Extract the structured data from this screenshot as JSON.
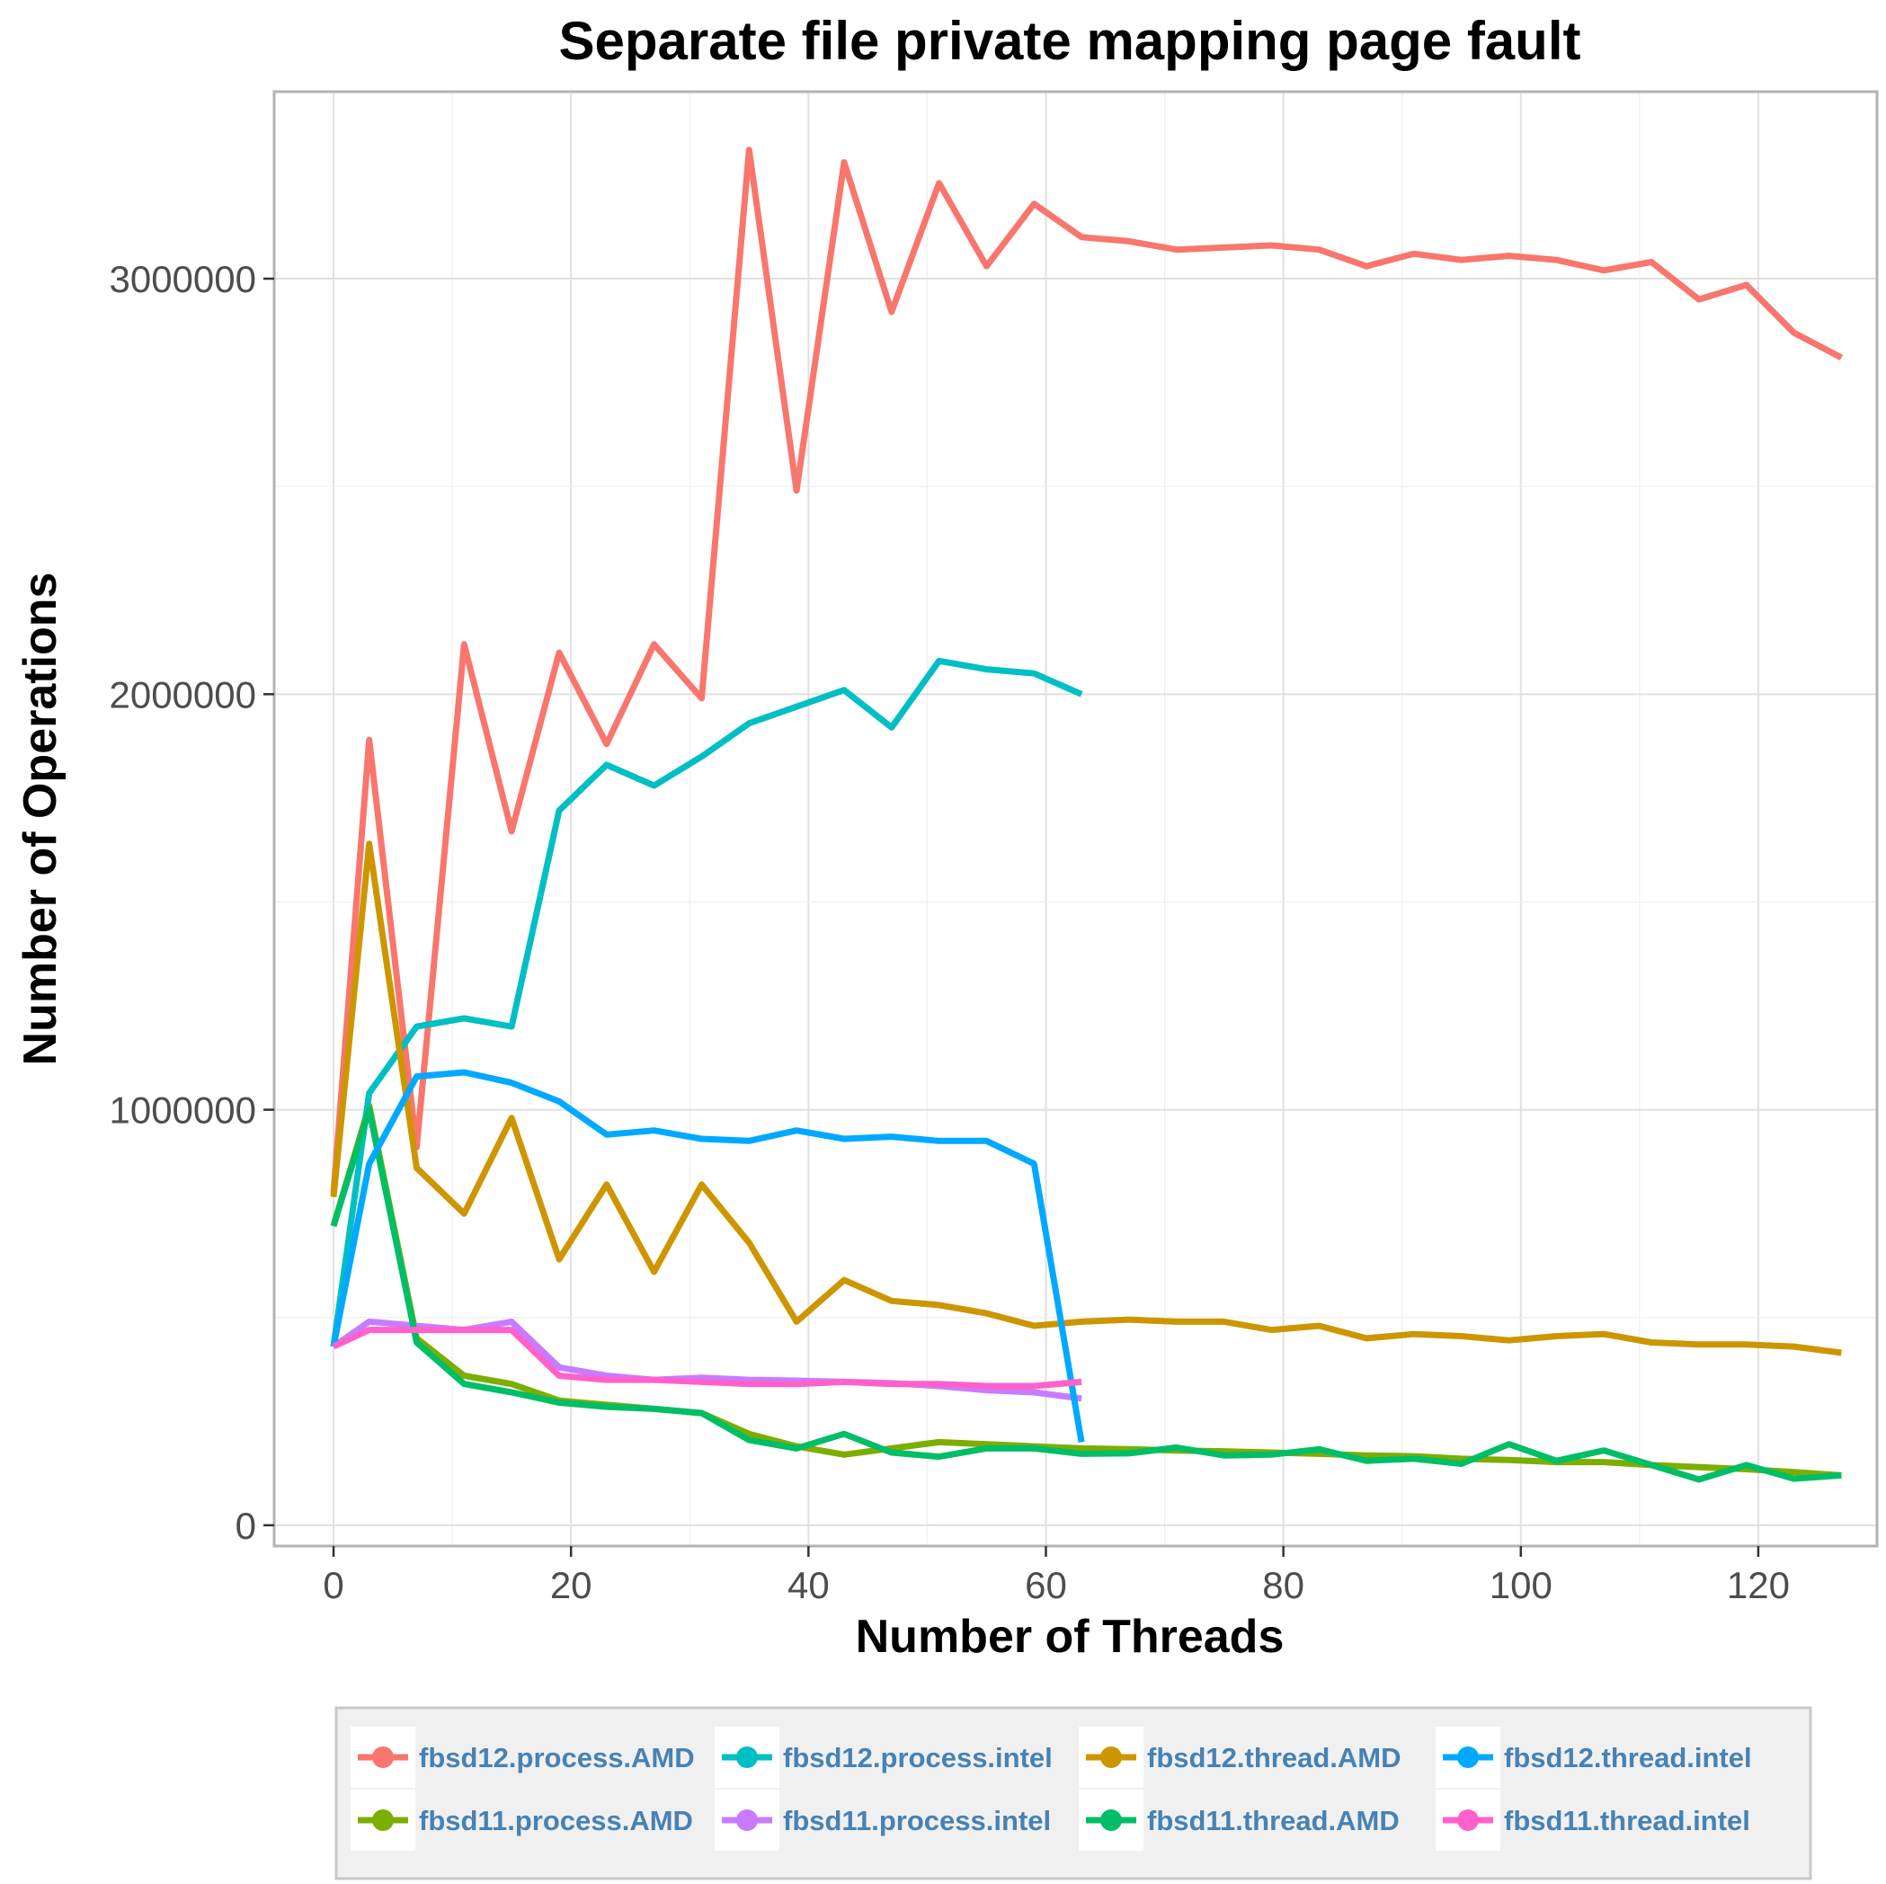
{
  "chart_data": {
    "type": "line",
    "title": "Separate file private mapping page fault",
    "xlabel": "Number of Threads",
    "ylabel": "Number of Operations",
    "xlim": [
      -5,
      130
    ],
    "ylim": [
      -50000,
      3450000
    ],
    "x_ticks": [
      0,
      20,
      40,
      60,
      80,
      100,
      120
    ],
    "x_tick_labels": [
      "0",
      "20",
      "40",
      "60",
      "80",
      "100",
      "120"
    ],
    "y_ticks": [
      0,
      1000000,
      2000000,
      3000000
    ],
    "y_tick_labels": [
      "0",
      "1000000",
      "2000000",
      "3000000"
    ],
    "grid": true,
    "legend_position": "bottom",
    "series": [
      {
        "name": "fbsd12.process.AMD",
        "color": "#F8766D",
        "x": [
          0,
          3,
          7,
          11,
          15,
          19,
          23,
          27,
          31,
          35,
          39,
          43,
          47,
          51,
          55,
          59,
          63,
          67,
          71,
          75,
          79,
          83,
          87,
          91,
          95,
          99,
          103,
          107,
          111,
          115,
          119,
          123,
          127
        ],
        "y": [
          800000,
          1890000,
          910000,
          2120000,
          1670000,
          2100000,
          1880000,
          2120000,
          1990000,
          3310000,
          2490000,
          3280000,
          2920000,
          3230000,
          3030000,
          3180000,
          3100000,
          3090000,
          3070000,
          3075000,
          3080000,
          3070000,
          3030000,
          3060000,
          3045000,
          3055000,
          3045000,
          3020000,
          3040000,
          2950000,
          2985000,
          2870000,
          2810000
        ]
      },
      {
        "name": "fbsd11.process.AMD",
        "color": "#7CAE00",
        "x": [
          0,
          3,
          7,
          11,
          15,
          19,
          23,
          27,
          31,
          35,
          39,
          43,
          47,
          51,
          55,
          59,
          63,
          67,
          71,
          75,
          79,
          83,
          87,
          91,
          95,
          99,
          103,
          107,
          111,
          115,
          119,
          123,
          127
        ],
        "y": [
          720000,
          1010000,
          450000,
          360000,
          340000,
          300000,
          290000,
          280000,
          270000,
          220000,
          190000,
          170000,
          185000,
          200000,
          195000,
          190000,
          185000,
          183000,
          180000,
          178000,
          175000,
          172000,
          168000,
          166000,
          160000,
          157000,
          152000,
          152000,
          145000,
          140000,
          135000,
          128000,
          120000
        ]
      },
      {
        "name": "fbsd12.process.intel",
        "color": "#00BFC4",
        "x": [
          0,
          3,
          7,
          11,
          15,
          19,
          23,
          27,
          31,
          35,
          39,
          43,
          47,
          51,
          55,
          59,
          63
        ],
        "y": [
          430000,
          1040000,
          1200000,
          1220000,
          1200000,
          1720000,
          1830000,
          1780000,
          1850000,
          1930000,
          1970000,
          2010000,
          1920000,
          2080000,
          2060000,
          2050000,
          2000000
        ]
      },
      {
        "name": "fbsd11.process.intel",
        "color": "#C77CFF",
        "x": [
          0,
          3,
          7,
          11,
          15,
          19,
          23,
          27,
          31,
          35,
          39,
          43,
          47,
          51,
          55,
          59,
          63
        ],
        "y": [
          430000,
          490000,
          480000,
          470000,
          490000,
          380000,
          360000,
          350000,
          355000,
          350000,
          348000,
          345000,
          342000,
          335000,
          325000,
          320000,
          305000
        ]
      },
      {
        "name": "fbsd12.thread.AMD",
        "color": "#CD9600",
        "x": [
          0,
          3,
          7,
          11,
          15,
          19,
          23,
          27,
          31,
          35,
          39,
          43,
          47,
          51,
          55,
          59,
          63,
          67,
          71,
          75,
          79,
          83,
          87,
          91,
          95,
          99,
          103,
          107,
          111,
          115,
          119,
          123,
          127
        ],
        "y": [
          790000,
          1640000,
          860000,
          750000,
          980000,
          640000,
          820000,
          610000,
          820000,
          680000,
          490000,
          590000,
          540000,
          530000,
          510000,
          480000,
          490000,
          495000,
          490000,
          490000,
          470000,
          480000,
          450000,
          460000,
          455000,
          445000,
          455000,
          460000,
          440000,
          435000,
          435000,
          430000,
          415000
        ]
      },
      {
        "name": "fbsd11.thread.AMD",
        "color": "#00BE67",
        "x": [
          0,
          3,
          7,
          11,
          15,
          19,
          23,
          27,
          31,
          35,
          39,
          43,
          47,
          51,
          55,
          59,
          63,
          67,
          71,
          75,
          79,
          83,
          87,
          91,
          95,
          99,
          103,
          107,
          111,
          115,
          119,
          123,
          127
        ],
        "y": [
          720000,
          1000000,
          440000,
          340000,
          320000,
          295000,
          285000,
          280000,
          270000,
          205000,
          185000,
          220000,
          175000,
          165000,
          185000,
          185000,
          172000,
          173000,
          187000,
          168000,
          170000,
          183000,
          155000,
          160000,
          148000,
          195000,
          155000,
          180000,
          145000,
          110000,
          145000,
          112000,
          120000
        ]
      },
      {
        "name": "fbsd12.thread.intel",
        "color": "#00A9FF",
        "x": [
          0,
          3,
          7,
          11,
          15,
          19,
          23,
          27,
          31,
          35,
          39,
          43,
          47,
          51,
          55,
          59,
          63
        ],
        "y": [
          430000,
          870000,
          1080000,
          1090000,
          1065000,
          1020000,
          940000,
          950000,
          930000,
          925000,
          950000,
          930000,
          935000,
          925000,
          925000,
          870000,
          200000
        ]
      },
      {
        "name": "fbsd11.thread.intel",
        "color": "#FF61CC",
        "x": [
          0,
          3,
          7,
          11,
          15,
          19,
          23,
          27,
          31,
          35,
          39,
          43,
          47,
          51,
          55,
          59,
          63
        ],
        "y": [
          430000,
          470000,
          470000,
          470000,
          470000,
          360000,
          350000,
          350000,
          345000,
          340000,
          340000,
          345000,
          340000,
          340000,
          335000,
          335000,
          345000
        ]
      }
    ]
  }
}
